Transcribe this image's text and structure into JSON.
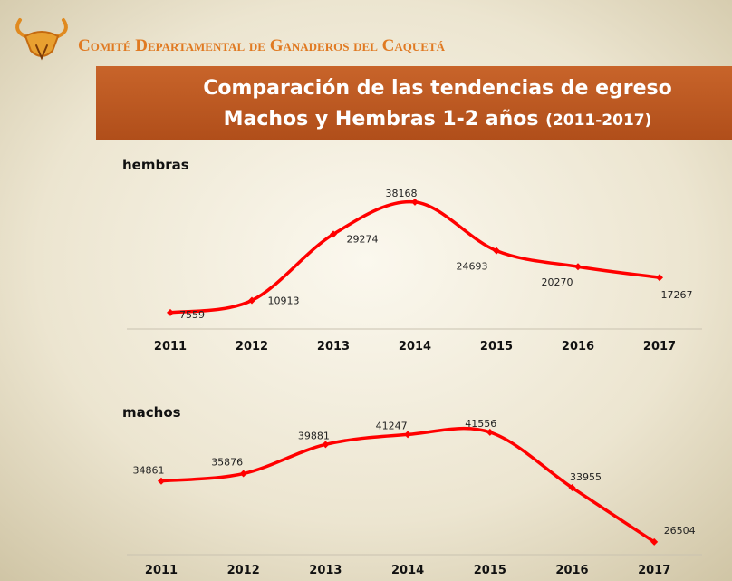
{
  "header": {
    "organization": "Comité Departamental de Ganaderos del Caquetá",
    "title_line1": "Comparación de las tendencias de egreso",
    "title_line2": "Machos y Hembras 1-2 años",
    "title_years": "(2011-2017)"
  },
  "chart_data": [
    {
      "type": "line",
      "title": "hembras",
      "color": "#ff0000",
      "categories": [
        "2011",
        "2012",
        "2013",
        "2014",
        "2015",
        "2016",
        "2017"
      ],
      "values": [
        7559,
        10913,
        29274,
        38168,
        24693,
        20270,
        17267
      ],
      "ylim": [
        0,
        40000
      ]
    },
    {
      "type": "line",
      "title": "machos",
      "color": "#ff0000",
      "categories": [
        "2011",
        "2012",
        "2013",
        "2014",
        "2015",
        "2016",
        "2017"
      ],
      "values": [
        34861,
        35876,
        39881,
        41247,
        41556,
        33955,
        26504
      ],
      "ylim": [
        25000,
        45000
      ]
    }
  ]
}
